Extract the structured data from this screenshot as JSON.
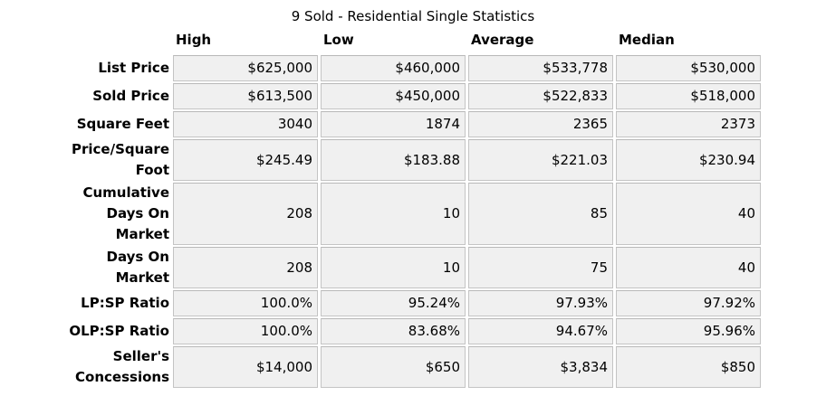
{
  "title": "9 Sold - Residential Single Statistics",
  "table": {
    "columns": [
      "High",
      "Low",
      "Average",
      "Median"
    ],
    "rows": [
      {
        "label": "List Price",
        "values": [
          "$625,000",
          "$460,000",
          "$533,778",
          "$530,000"
        ]
      },
      {
        "label": "Sold Price",
        "values": [
          "$613,500",
          "$450,000",
          "$522,833",
          "$518,000"
        ]
      },
      {
        "label": "Square Feet",
        "values": [
          "3040",
          "1874",
          "2365",
          "2373"
        ]
      },
      {
        "label": "Price/Square\nFoot",
        "values": [
          "$245.49",
          "$183.88",
          "$221.03",
          "$230.94"
        ]
      },
      {
        "label": "Cumulative\nDays On\nMarket",
        "values": [
          "208",
          "10",
          "85",
          "40"
        ]
      },
      {
        "label": "Days On\nMarket",
        "values": [
          "208",
          "10",
          "75",
          "40"
        ]
      },
      {
        "label": "LP:SP Ratio",
        "values": [
          "100.0%",
          "95.24%",
          "97.93%",
          "97.92%"
        ]
      },
      {
        "label": "OLP:SP Ratio",
        "values": [
          "100.0%",
          "83.68%",
          "94.67%",
          "95.96%"
        ]
      },
      {
        "label": "Seller's\nConcessions",
        "values": [
          "$14,000",
          "$650",
          "$3,834",
          "$850"
        ]
      }
    ]
  },
  "colors": {
    "cell_background": "#f0f0f0",
    "cell_border": "#c4c4c4",
    "text": "#000000",
    "page_background": "#ffffff"
  }
}
